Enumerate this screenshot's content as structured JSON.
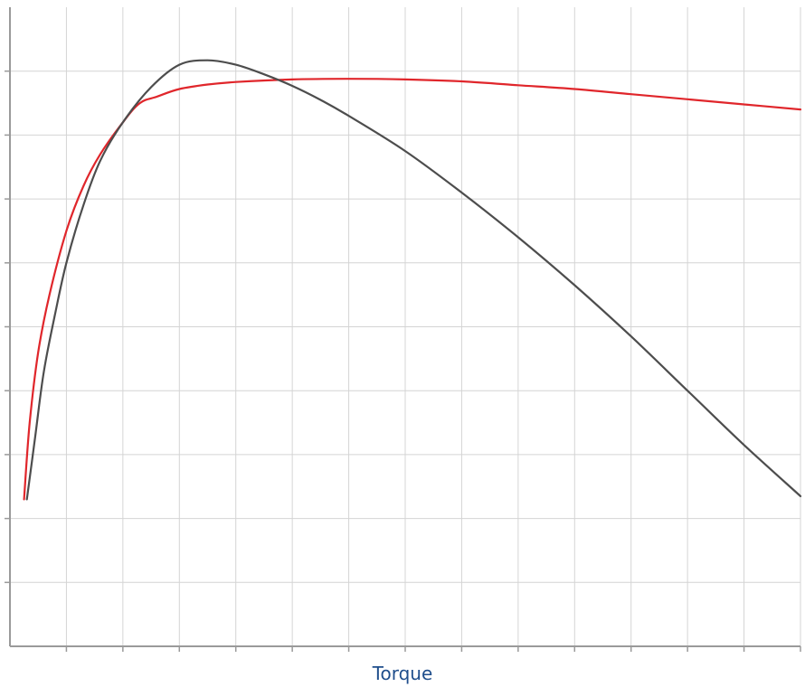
{
  "chart_data": {
    "type": "line",
    "title": "",
    "xlabel": "Torque",
    "ylabel": "",
    "xlim": [
      0,
      14
    ],
    "ylim": [
      0,
      10
    ],
    "grid": true,
    "legend": "none",
    "series": [
      {
        "color": "#e0262b",
        "x": [
          0.25,
          0.35,
          0.5,
          0.7,
          1.0,
          1.3,
          1.6,
          2.0,
          2.3,
          2.6,
          3.0,
          3.5,
          4.0,
          5.0,
          6.0,
          7.0,
          8.0,
          9.0,
          10.0,
          11.0,
          12.0,
          13.0,
          14.0
        ],
        "y": [
          2.3,
          3.5,
          4.6,
          5.5,
          6.5,
          7.2,
          7.7,
          8.2,
          8.5,
          8.6,
          8.72,
          8.79,
          8.83,
          8.87,
          8.88,
          8.87,
          8.84,
          8.78,
          8.72,
          8.64,
          8.56,
          8.48,
          8.4
        ]
      },
      {
        "color": "#4d4d4d",
        "x": [
          0.3,
          0.45,
          0.6,
          0.8,
          1.0,
          1.3,
          1.6,
          2.0,
          2.5,
          3.0,
          3.5,
          4.0,
          4.5,
          5.0,
          5.5,
          6.0,
          7.0,
          8.0,
          9.0,
          10.0,
          11.0,
          12.0,
          13.0,
          14.0
        ],
        "y": [
          2.3,
          3.3,
          4.3,
          5.2,
          6.0,
          6.9,
          7.6,
          8.2,
          8.75,
          9.1,
          9.17,
          9.1,
          8.95,
          8.77,
          8.55,
          8.3,
          7.75,
          7.1,
          6.4,
          5.65,
          4.85,
          4.0,
          3.15,
          2.35
        ]
      }
    ]
  }
}
